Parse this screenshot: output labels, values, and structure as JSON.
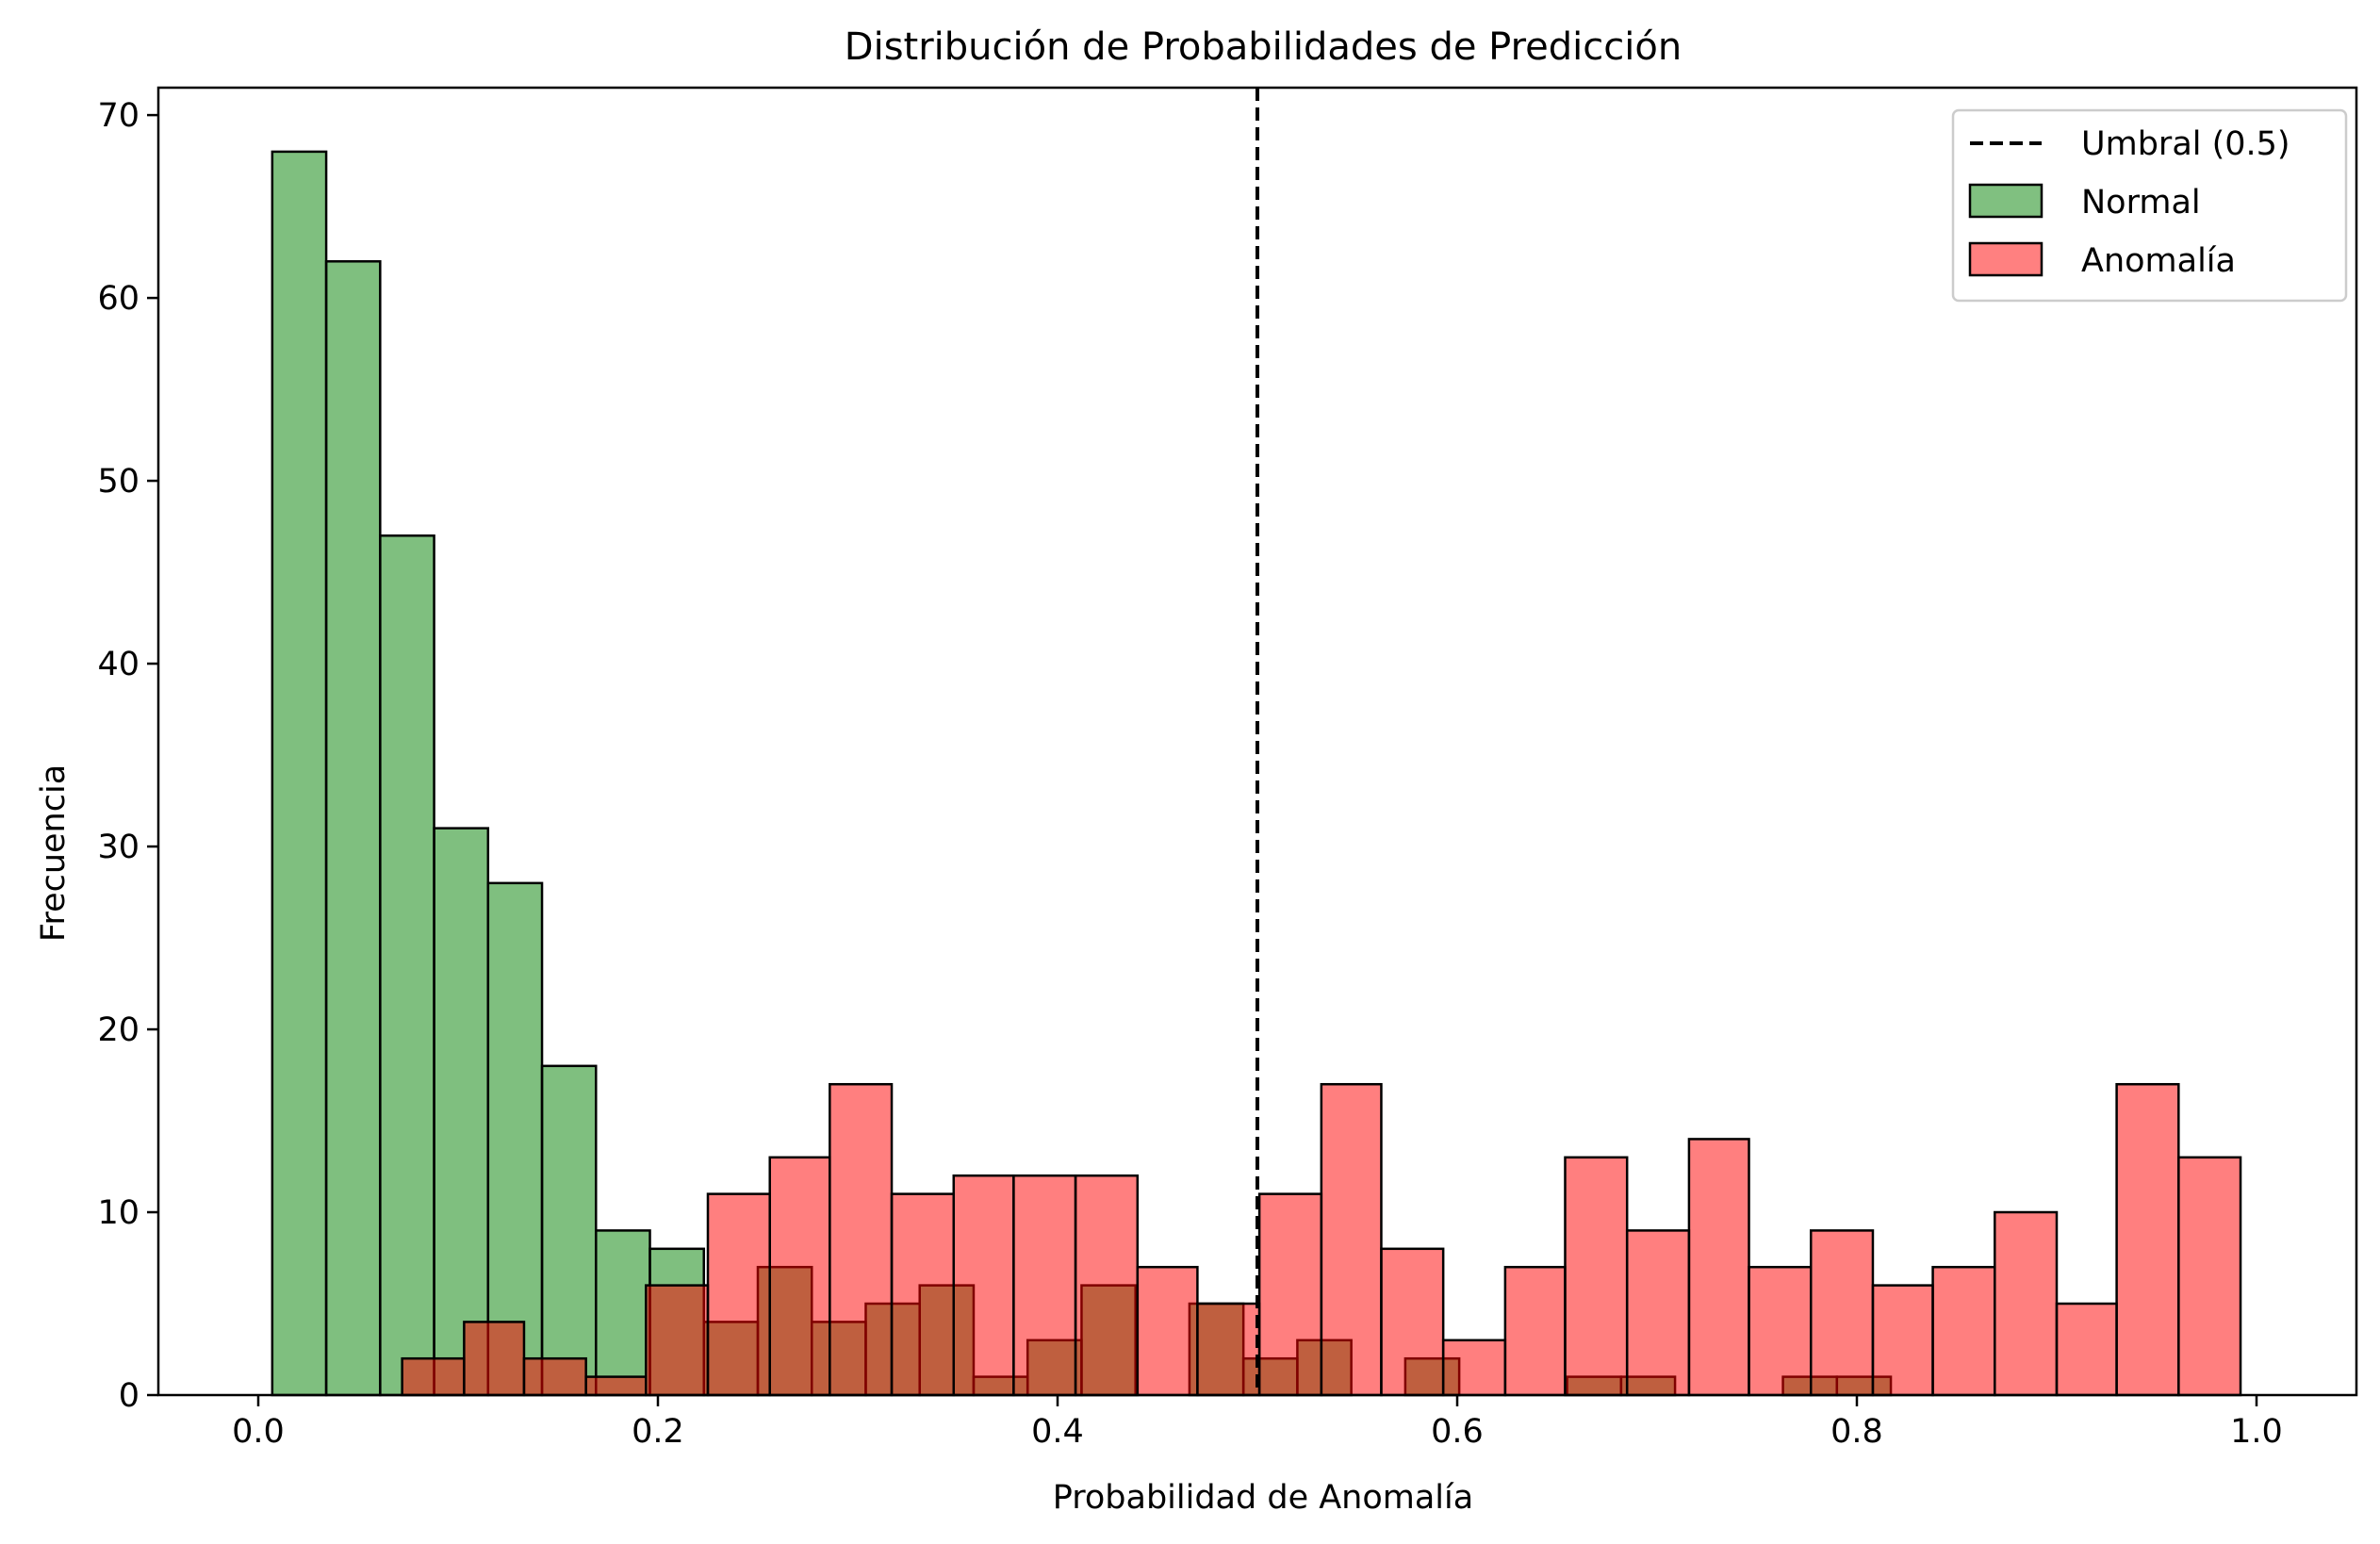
{
  "chart_data": {
    "type": "bar",
    "title": "Distribución de Probabilidades de Predicción",
    "xlabel": "Probabilidad de Anomalía",
    "ylabel": "Frecuencia",
    "xlim": [
      -0.05,
      1.05
    ],
    "ylim": [
      0,
      71.5
    ],
    "xticks": [
      "0.0",
      "0.2",
      "0.4",
      "0.6",
      "0.8",
      "1.0"
    ],
    "xtick_values": [
      0.0,
      0.2,
      0.4,
      0.6,
      0.8,
      1.0
    ],
    "yticks": [
      "0",
      "10",
      "20",
      "30",
      "40",
      "50",
      "60",
      "70"
    ],
    "ytick_values": [
      0,
      10,
      20,
      30,
      40,
      50,
      60,
      70
    ],
    "grid": false,
    "legend_position": "top-right",
    "threshold": {
      "x": 0.5,
      "label": "Umbral (0.5)",
      "color": "#000000",
      "style": "dashed"
    },
    "series": [
      {
        "name": "Normal",
        "color": "#008000",
        "alpha": 0.5,
        "edge": "#000000",
        "bins": [
          {
            "x0": 0.007,
            "x1": 0.034,
            "count": 68
          },
          {
            "x0": 0.034,
            "x1": 0.061,
            "count": 62
          },
          {
            "x0": 0.061,
            "x1": 0.088,
            "count": 47
          },
          {
            "x0": 0.088,
            "x1": 0.115,
            "count": 31
          },
          {
            "x0": 0.115,
            "x1": 0.142,
            "count": 28
          },
          {
            "x0": 0.142,
            "x1": 0.169,
            "count": 18
          },
          {
            "x0": 0.169,
            "x1": 0.196,
            "count": 9
          },
          {
            "x0": 0.196,
            "x1": 0.223,
            "count": 8
          },
          {
            "x0": 0.223,
            "x1": 0.25,
            "count": 4
          },
          {
            "x0": 0.25,
            "x1": 0.277,
            "count": 7
          },
          {
            "x0": 0.277,
            "x1": 0.304,
            "count": 4
          },
          {
            "x0": 0.304,
            "x1": 0.331,
            "count": 5
          },
          {
            "x0": 0.331,
            "x1": 0.358,
            "count": 6
          },
          {
            "x0": 0.358,
            "x1": 0.385,
            "count": 1
          },
          {
            "x0": 0.385,
            "x1": 0.412,
            "count": 3
          },
          {
            "x0": 0.412,
            "x1": 0.439,
            "count": 6
          },
          {
            "x0": 0.439,
            "x1": 0.466,
            "count": 0
          },
          {
            "x0": 0.466,
            "x1": 0.493,
            "count": 5
          },
          {
            "x0": 0.493,
            "x1": 0.52,
            "count": 2
          },
          {
            "x0": 0.52,
            "x1": 0.547,
            "count": 3
          },
          {
            "x0": 0.547,
            "x1": 0.574,
            "count": 0
          },
          {
            "x0": 0.574,
            "x1": 0.601,
            "count": 2
          },
          {
            "x0": 0.601,
            "x1": 0.628,
            "count": 0
          },
          {
            "x0": 0.628,
            "x1": 0.655,
            "count": 0
          },
          {
            "x0": 0.655,
            "x1": 0.682,
            "count": 1
          },
          {
            "x0": 0.682,
            "x1": 0.709,
            "count": 1
          },
          {
            "x0": 0.709,
            "x1": 0.736,
            "count": 0
          },
          {
            "x0": 0.736,
            "x1": 0.763,
            "count": 0
          },
          {
            "x0": 0.763,
            "x1": 0.79,
            "count": 1
          },
          {
            "x0": 0.79,
            "x1": 0.817,
            "count": 1
          }
        ]
      },
      {
        "name": "Anomalía",
        "color": "#ff0000",
        "alpha": 0.5,
        "edge": "#000000",
        "bins": [
          {
            "x0": 0.072,
            "x1": 0.103,
            "count": 2
          },
          {
            "x0": 0.103,
            "x1": 0.133,
            "count": 4
          },
          {
            "x0": 0.133,
            "x1": 0.164,
            "count": 2
          },
          {
            "x0": 0.164,
            "x1": 0.194,
            "count": 1
          },
          {
            "x0": 0.194,
            "x1": 0.225,
            "count": 6
          },
          {
            "x0": 0.225,
            "x1": 0.256,
            "count": 11
          },
          {
            "x0": 0.256,
            "x1": 0.286,
            "count": 13
          },
          {
            "x0": 0.286,
            "x1": 0.317,
            "count": 17
          },
          {
            "x0": 0.317,
            "x1": 0.348,
            "count": 11
          },
          {
            "x0": 0.348,
            "x1": 0.378,
            "count": 12
          },
          {
            "x0": 0.378,
            "x1": 0.409,
            "count": 12
          },
          {
            "x0": 0.409,
            "x1": 0.44,
            "count": 12
          },
          {
            "x0": 0.44,
            "x1": 0.47,
            "count": 7
          },
          {
            "x0": 0.47,
            "x1": 0.501,
            "count": 5
          },
          {
            "x0": 0.501,
            "x1": 0.532,
            "count": 11
          },
          {
            "x0": 0.532,
            "x1": 0.562,
            "count": 17
          },
          {
            "x0": 0.562,
            "x1": 0.593,
            "count": 8
          },
          {
            "x0": 0.593,
            "x1": 0.624,
            "count": 3
          },
          {
            "x0": 0.624,
            "x1": 0.654,
            "count": 7
          },
          {
            "x0": 0.654,
            "x1": 0.685,
            "count": 13
          },
          {
            "x0": 0.685,
            "x1": 0.716,
            "count": 9
          },
          {
            "x0": 0.716,
            "x1": 0.746,
            "count": 14
          },
          {
            "x0": 0.746,
            "x1": 0.777,
            "count": 7
          },
          {
            "x0": 0.777,
            "x1": 0.808,
            "count": 9
          },
          {
            "x0": 0.808,
            "x1": 0.838,
            "count": 6
          },
          {
            "x0": 0.838,
            "x1": 0.869,
            "count": 7
          },
          {
            "x0": 0.869,
            "x1": 0.9,
            "count": 10
          },
          {
            "x0": 0.9,
            "x1": 0.93,
            "count": 5
          },
          {
            "x0": 0.93,
            "x1": 0.961,
            "count": 17
          },
          {
            "x0": 0.961,
            "x1": 0.992,
            "count": 13
          }
        ]
      }
    ]
  }
}
